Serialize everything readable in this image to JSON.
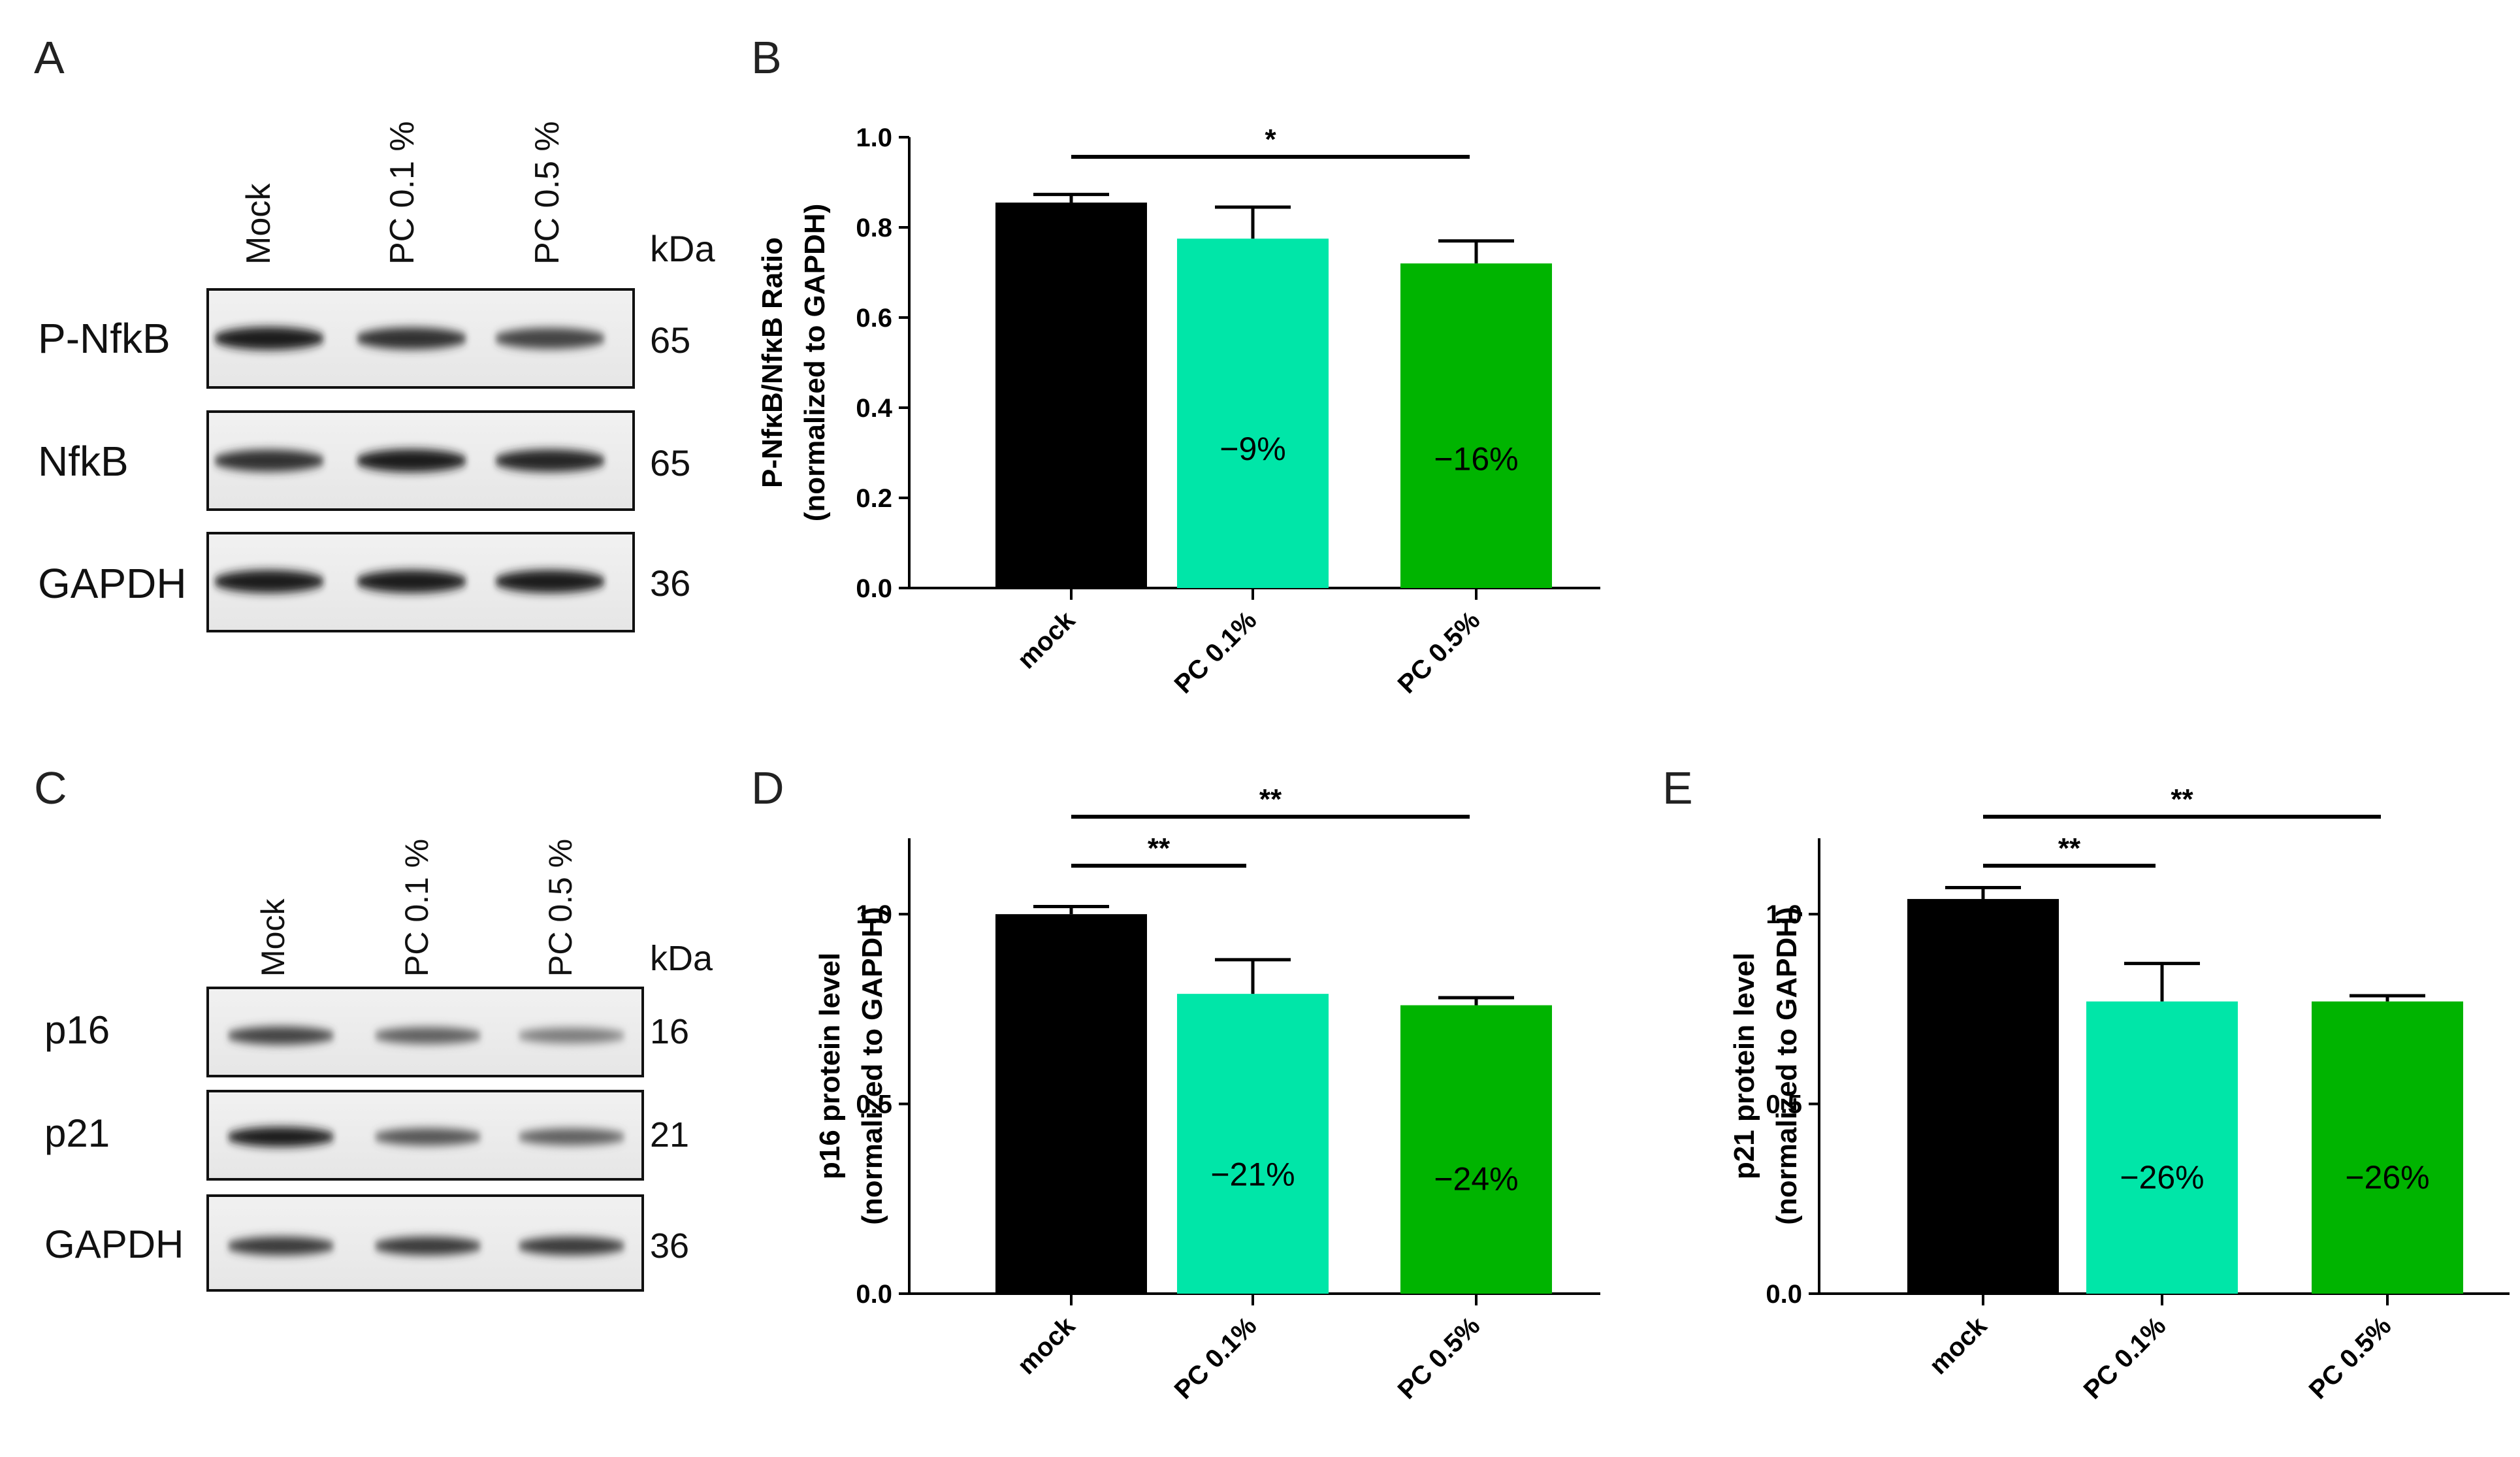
{
  "panels": [
    {
      "key": "A",
      "letter": "A"
    },
    {
      "key": "B",
      "letter": "B"
    },
    {
      "key": "C",
      "letter": "C"
    },
    {
      "key": "D",
      "letter": "D"
    },
    {
      "key": "E",
      "letter": "E"
    }
  ],
  "blots": [
    {
      "key": "A",
      "lanes": [
        "Mock",
        "PC 0.1 %",
        "PC 0.5 %"
      ],
      "kda_label": "kDa",
      "rows": [
        {
          "label": "P-NfkB",
          "kda": "65",
          "intensity": [
            0.95,
            0.85,
            0.75
          ]
        },
        {
          "label": "NfkB",
          "kda": "65",
          "intensity": [
            0.85,
            0.95,
            0.9
          ]
        },
        {
          "label": "GAPDH",
          "kda": "36",
          "intensity": [
            0.95,
            0.95,
            0.95
          ]
        }
      ]
    },
    {
      "key": "C",
      "lanes": [
        "Mock",
        "PC 0.1 %",
        "PC 0.5 %"
      ],
      "kda_label": "kDa",
      "rows": [
        {
          "label": "p16",
          "kda": "16",
          "intensity": [
            0.75,
            0.6,
            0.45
          ]
        },
        {
          "label": "p21",
          "kda": "21",
          "intensity": [
            0.95,
            0.65,
            0.6
          ]
        },
        {
          "label": "GAPDH",
          "kda": "36",
          "intensity": [
            0.8,
            0.8,
            0.8
          ]
        }
      ]
    }
  ],
  "chart_data": [
    {
      "key": "B",
      "type": "bar",
      "categories": [
        "mock",
        "PC 0.1%",
        "PC 0.5%"
      ],
      "values": [
        0.855,
        0.775,
        0.72
      ],
      "errors": [
        0.018,
        0.07,
        0.05
      ],
      "colors": [
        "#000000",
        "#00e6a8",
        "#00b400"
      ],
      "bar_labels": [
        "",
        "−9%",
        "−16%"
      ],
      "ylabel_lines": [
        "P-NfκB/NfκB Ratio",
        "(normalized to GAPDH)"
      ],
      "ylim": [
        0,
        1.0
      ],
      "yticks": [
        0.0,
        0.2,
        0.4,
        0.6,
        0.8,
        1.0
      ],
      "ytick_labels": [
        "0.0",
        "0.2",
        "0.4",
        "0.6",
        "0.8",
        "1.0"
      ],
      "significance": [
        {
          "from": 0,
          "to": 2,
          "label": "*",
          "level": 0
        }
      ]
    },
    {
      "key": "D",
      "type": "bar",
      "categories": [
        "mock",
        "PC 0.1%",
        "PC 0.5%"
      ],
      "values": [
        1.0,
        0.79,
        0.76
      ],
      "errors": [
        0.02,
        0.09,
        0.02
      ],
      "colors": [
        "#000000",
        "#00e6a8",
        "#00b400"
      ],
      "bar_labels": [
        "",
        "−21%",
        "−24%"
      ],
      "ylabel_lines": [
        "p16 protein level",
        "(normalized to GAPDH)"
      ],
      "ylim": [
        0,
        1.2
      ],
      "yticks": [
        0.0,
        0.5,
        1.0
      ],
      "ytick_labels": [
        "0.0",
        "0.5",
        "1.0"
      ],
      "significance": [
        {
          "from": 0,
          "to": 1,
          "label": "**",
          "level": 0
        },
        {
          "from": 0,
          "to": 2,
          "label": "**",
          "level": 1
        }
      ]
    },
    {
      "key": "E",
      "type": "bar",
      "categories": [
        "mock",
        "PC 0.1%",
        "PC 0.5%"
      ],
      "values": [
        1.04,
        0.77,
        0.77
      ],
      "errors": [
        0.03,
        0.1,
        0.015
      ],
      "colors": [
        "#000000",
        "#00e6a8",
        "#00b400"
      ],
      "bar_labels": [
        "",
        "−26%",
        "−26%"
      ],
      "ylabel_lines": [
        "p21 protein level",
        "(normalized to GAPDH)"
      ],
      "ylim": [
        0,
        1.2
      ],
      "yticks": [
        0.0,
        0.5,
        1.0
      ],
      "ytick_labels": [
        "0.0",
        "0.5",
        "1.0"
      ],
      "significance": [
        {
          "from": 0,
          "to": 1,
          "label": "**",
          "level": 0
        },
        {
          "from": 0,
          "to": 2,
          "label": "**",
          "level": 1
        }
      ]
    }
  ]
}
